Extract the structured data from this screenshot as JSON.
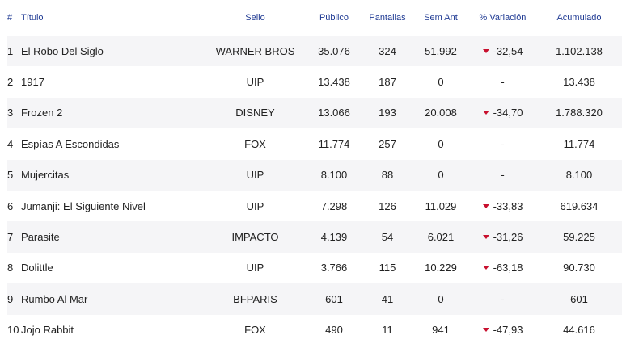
{
  "headers": {
    "num": "#",
    "title": "Título",
    "label": "Sello",
    "audience": "Público",
    "screens": "Pantallas",
    "prev_week": "Sem Ant",
    "variation": "% Variación",
    "cumulative": "Acumulado"
  },
  "rows": [
    {
      "num": "1",
      "title": "El Robo Del Siglo",
      "label": "WARNER BROS",
      "audience": "35.076",
      "screens": "324",
      "prev_week": "51.992",
      "variation": "-32,54",
      "trend": "down",
      "cumulative": "1.102.138"
    },
    {
      "num": "2",
      "title": "1917",
      "label": "UIP",
      "audience": "13.438",
      "screens": "187",
      "prev_week": "0",
      "variation": "-",
      "trend": "none",
      "cumulative": "13.438"
    },
    {
      "num": "3",
      "title": "Frozen 2",
      "label": "DISNEY",
      "audience": "13.066",
      "screens": "193",
      "prev_week": "20.008",
      "variation": "-34,70",
      "trend": "down",
      "cumulative": "1.788.320"
    },
    {
      "num": "4",
      "title": "Espías A Escondidas",
      "label": "FOX",
      "audience": "11.774",
      "screens": "257",
      "prev_week": "0",
      "variation": "-",
      "trend": "none",
      "cumulative": "11.774"
    },
    {
      "num": "5",
      "title": "Mujercitas",
      "label": "UIP",
      "audience": "8.100",
      "screens": "88",
      "prev_week": "0",
      "variation": "-",
      "trend": "none",
      "cumulative": "8.100"
    },
    {
      "num": "6",
      "title": "Jumanji: El Siguiente Nivel",
      "label": "UIP",
      "audience": "7.298",
      "screens": "126",
      "prev_week": "11.029",
      "variation": "-33,83",
      "trend": "down",
      "cumulative": "619.634"
    },
    {
      "num": "7",
      "title": "Parasite",
      "label": "IMPACTO",
      "audience": "4.139",
      "screens": "54",
      "prev_week": "6.021",
      "variation": "-31,26",
      "trend": "down",
      "cumulative": "59.225"
    },
    {
      "num": "8",
      "title": "Dolittle",
      "label": "UIP",
      "audience": "3.766",
      "screens": "115",
      "prev_week": "10.229",
      "variation": "-63,18",
      "trend": "down",
      "cumulative": "90.730"
    },
    {
      "num": "9",
      "title": "Rumbo Al Mar",
      "label": "BFPARIS",
      "audience": "601",
      "screens": "41",
      "prev_week": "0",
      "variation": "-",
      "trend": "none",
      "cumulative": "601"
    },
    {
      "num": "10",
      "title": "Jojo Rabbit",
      "label": "FOX",
      "audience": "490",
      "screens": "11",
      "prev_week": "941",
      "variation": "-47,93",
      "trend": "down",
      "cumulative": "44.616"
    }
  ],
  "colors": {
    "header_text": "#1f3a93",
    "down_arrow": "#c8102e",
    "stripe": "#f5f5f7"
  },
  "icons": {
    "down": "caret-down-icon"
  }
}
